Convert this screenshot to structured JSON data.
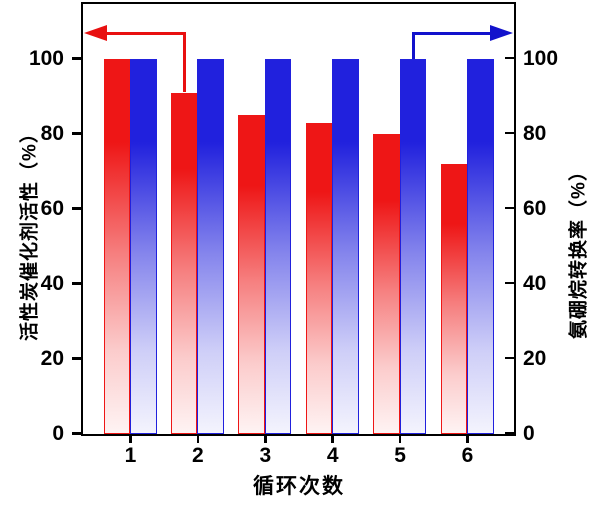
{
  "chart_data": {
    "type": "bar",
    "title": "",
    "categories": [
      "1",
      "2",
      "3",
      "4",
      "5",
      "6"
    ],
    "xlabel": "循环次数",
    "ylabel_left": "活性炭催化剂活性（%）",
    "ylabel_right": "氨硼烷转换率（%）",
    "yticks": [
      0,
      20,
      40,
      60,
      80,
      100
    ],
    "ylim": [
      0,
      114
    ],
    "grid": false,
    "legend": "none",
    "series": [
      {
        "name": "活性炭催化剂活性",
        "axis": "left",
        "color": "#ee1616",
        "values": [
          100,
          91,
          85,
          83,
          80,
          72
        ]
      },
      {
        "name": "氨硼烷转换率",
        "axis": "right",
        "color": "#2121dd",
        "values": [
          100,
          100,
          100,
          100,
          100,
          100
        ]
      }
    ],
    "annotations": [
      {
        "id": "red-arrow",
        "type": "arrow",
        "color": "#e81010",
        "direction": "left",
        "meaning": "red bars read on left axis",
        "series_index": 0,
        "category_index": 1
      },
      {
        "id": "blue-arrow",
        "type": "arrow",
        "color": "#1212cc",
        "direction": "right",
        "meaning": "blue bars read on right axis",
        "series_index": 1,
        "category_index": 4
      }
    ]
  }
}
